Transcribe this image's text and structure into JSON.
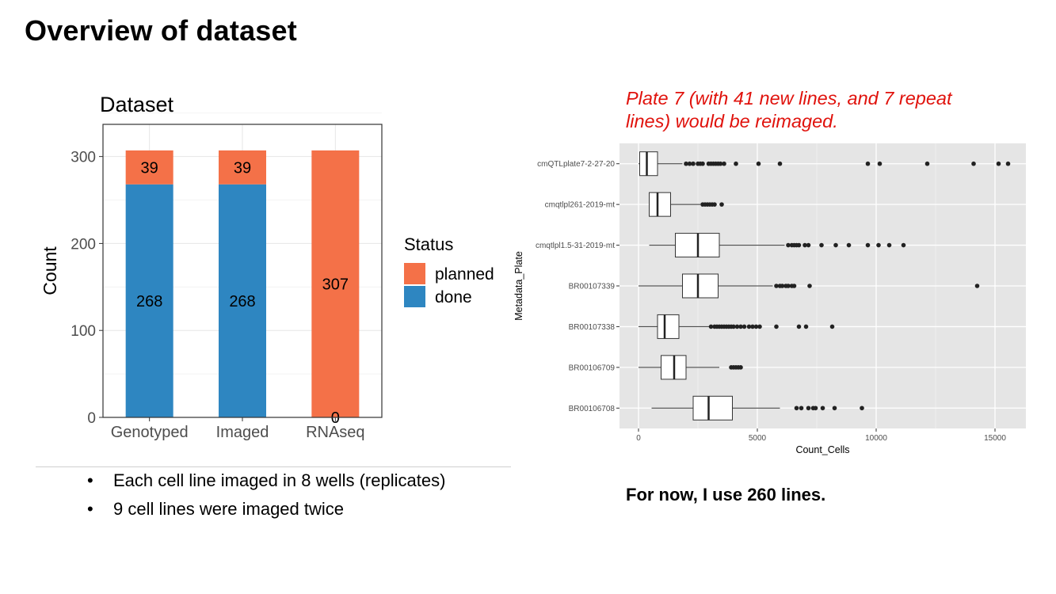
{
  "slide": {
    "title": "Overview of dataset",
    "note_red": "Plate 7 (with 41 new lines, and 7 repeat lines) would be reimaged.",
    "bullets": [
      "Each cell line imaged in 8 wells (replicates)",
      "9 cell lines were imaged twice"
    ],
    "bottom_note": "For now, I use 260 lines."
  },
  "chart_data": [
    {
      "type": "bar",
      "stacked": true,
      "title": "Dataset",
      "xlabel": "",
      "ylabel": "Count",
      "categories": [
        "Genotyped",
        "Imaged",
        "RNAseq"
      ],
      "series": [
        {
          "name": "done",
          "values": [
            268,
            268,
            0
          ],
          "color": "#2e86c1"
        },
        {
          "name": "planned",
          "values": [
            39,
            39,
            307
          ],
          "color": "#f47148"
        }
      ],
      "ylim": [
        0,
        337
      ],
      "yticks": [
        0,
        100,
        200,
        300
      ],
      "legend": {
        "title": "Status",
        "position": "right",
        "order": [
          "planned",
          "done"
        ]
      },
      "grid": true
    },
    {
      "type": "box",
      "orientation": "horizontal",
      "xlabel": "Count_Cells",
      "ylabel": "Metadata_Plate",
      "xlim": [
        -800,
        16300
      ],
      "xticks": [
        0,
        5000,
        10000,
        15000
      ],
      "grid": true,
      "background": "#e5e5e5",
      "categories": [
        "cmQTLplate7-2-27-20",
        "cmqtlpl261-2019-mt",
        "cmqtlpl1.5-31-2019-mt",
        "BR00107339",
        "BR00107338",
        "BR00106709",
        "BR00106708"
      ],
      "boxes": [
        {
          "label": "cmQTLplate7-2-27-20",
          "whisker_low": 0,
          "q1": 50,
          "median": 350,
          "q3": 800,
          "whisker_high": 1850,
          "outliers": [
            2000,
            2150,
            2300,
            2500,
            2600,
            2700,
            2950,
            3050,
            3150,
            3250,
            3350,
            3450,
            3600,
            4100,
            5050,
            5950,
            9650,
            10150,
            12150,
            14100,
            15150,
            15550
          ]
        },
        {
          "label": "cmqtlpl261-2019-mt",
          "whisker_low": 450,
          "q1": 450,
          "median": 800,
          "q3": 1350,
          "whisker_high": 2600,
          "outliers": [
            2700,
            2800,
            2900,
            3000,
            3100,
            3200,
            3500
          ]
        },
        {
          "label": "cmqtlpl1.5-31-2019-mt",
          "whisker_low": 450,
          "q1": 1550,
          "median": 2500,
          "q3": 3400,
          "whisker_high": 6150,
          "outliers": [
            6300,
            6450,
            6550,
            6650,
            6750,
            7000,
            7150,
            7700,
            8300,
            8850,
            9650,
            10100,
            10550,
            11150
          ]
        },
        {
          "label": "BR00107339",
          "whisker_low": 0,
          "q1": 1850,
          "median": 2500,
          "q3": 3350,
          "whisker_high": 5650,
          "outliers": [
            5800,
            5950,
            6050,
            6200,
            6300,
            6450,
            6550,
            7200,
            14250
          ]
        },
        {
          "label": "BR00107338",
          "whisker_low": 0,
          "q1": 800,
          "median": 1100,
          "q3": 1700,
          "whisker_high": 3000,
          "outliers": [
            3050,
            3200,
            3300,
            3400,
            3500,
            3600,
            3700,
            3800,
            3900,
            4000,
            4150,
            4300,
            4450,
            4650,
            4800,
            4950,
            5100,
            5800,
            6750,
            7050,
            8150
          ]
        },
        {
          "label": "BR00106709",
          "whisker_low": 0,
          "q1": 950,
          "median": 1500,
          "q3": 2000,
          "whisker_high": 3400,
          "outliers": [
            3900,
            4000,
            4100,
            4200,
            4300
          ]
        },
        {
          "label": "BR00106708",
          "whisker_low": 550,
          "q1": 2300,
          "median": 2950,
          "q3": 3950,
          "whisker_high": 5950,
          "outliers": [
            6650,
            6850,
            7150,
            7350,
            7450,
            7750,
            8250,
            9400
          ]
        }
      ]
    }
  ]
}
